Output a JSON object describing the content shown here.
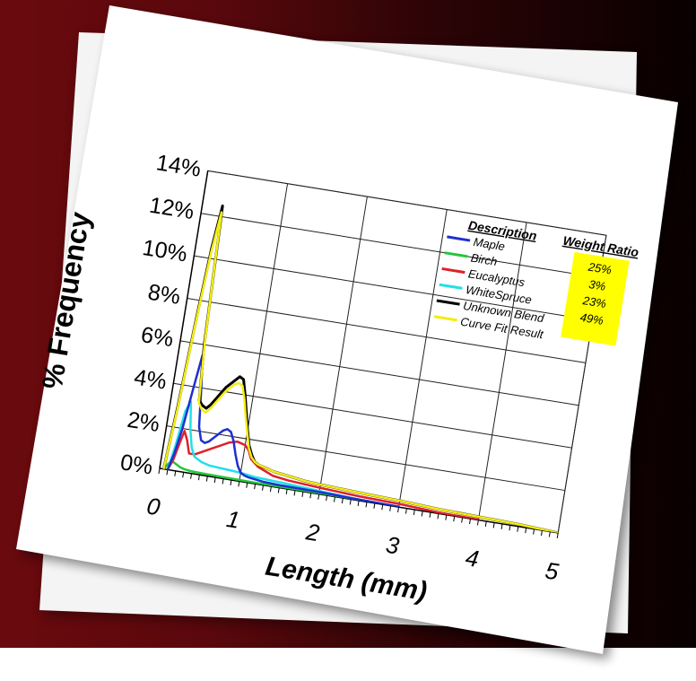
{
  "colors": {
    "maple": "#1f2fd0",
    "birch": "#22c83a",
    "eucalyptus": "#e0202a",
    "white_spruce": "#22e0e8",
    "unknown_blend": "#000000",
    "curve_fit": "#f4ee10",
    "weight_ratio_fill": "#ffff00",
    "background_left": "#6a0a0e",
    "background_right": "#080000"
  },
  "chart_data": {
    "type": "line",
    "title": "",
    "xlabel": "Length (mm)",
    "ylabel": "% Frequency",
    "xlim": [
      0,
      5
    ],
    "ylim": [
      0,
      14
    ],
    "x_ticks": [
      "0",
      "1",
      "2",
      "3",
      "4",
      "5"
    ],
    "y_ticks": [
      "0%",
      "2%",
      "4%",
      "6%",
      "8%",
      "10%",
      "12%",
      "14%"
    ],
    "grid": true,
    "legend": {
      "title": "Description",
      "placement": "top-right",
      "entries": [
        "Maple",
        "Birch",
        "Eucalyptus",
        "WhiteSpruce",
        "Unknown Blend",
        "Curve Fit Result"
      ]
    },
    "weight_ratio": {
      "title": "Weight Ratio",
      "values": [
        "25%",
        "3%",
        "23%",
        "49%"
      ]
    },
    "series": [
      {
        "name": "Maple",
        "color": "#1f2fd0",
        "x": [
          0.1,
          0.15,
          0.2,
          0.25,
          0.3,
          0.35,
          0.4,
          0.45,
          0.5,
          0.55,
          0.6,
          0.65,
          0.7,
          0.75,
          0.8,
          0.85,
          0.9,
          0.95,
          1.0,
          1.05,
          1.1,
          1.2,
          1.3,
          1.5,
          2.0,
          2.5,
          3.0
        ],
        "y": [
          0.0,
          0.8,
          2.0,
          3.8,
          5.5,
          4.0,
          2.2,
          1.6,
          1.5,
          1.6,
          1.8,
          2.0,
          2.2,
          2.3,
          2.2,
          1.8,
          1.2,
          0.7,
          0.4,
          0.3,
          0.25,
          0.2,
          0.15,
          0.12,
          0.1,
          0.05,
          0.02
        ]
      },
      {
        "name": "Birch",
        "color": "#22c83a",
        "x": [
          0.05,
          0.1,
          0.15,
          0.2,
          0.25,
          0.3,
          0.4,
          0.6,
          0.8,
          1.0,
          1.2,
          1.5,
          2.0,
          2.5
        ],
        "y": [
          0.0,
          0.3,
          0.4,
          0.3,
          0.2,
          0.15,
          0.1,
          0.08,
          0.07,
          0.06,
          0.05,
          0.04,
          0.02,
          0.01
        ]
      },
      {
        "name": "Eucalyptus",
        "color": "#e0202a",
        "x": [
          0.1,
          0.15,
          0.2,
          0.23,
          0.28,
          0.33,
          0.4,
          0.5,
          0.6,
          0.7,
          0.8,
          0.9,
          1.0,
          1.05,
          1.1,
          1.2,
          1.4,
          1.6,
          2.0,
          2.5,
          3.0,
          3.5,
          4.0
        ],
        "y": [
          0.0,
          0.5,
          1.4,
          1.9,
          1.5,
          0.9,
          0.9,
          1.1,
          1.3,
          1.5,
          1.7,
          1.8,
          1.7,
          1.5,
          1.1,
          0.8,
          0.5,
          0.4,
          0.3,
          0.2,
          0.15,
          0.05,
          0.02
        ]
      },
      {
        "name": "WhiteSpruce",
        "color": "#22e0e8",
        "x": [
          0.1,
          0.15,
          0.2,
          0.25,
          0.3,
          0.35,
          0.4,
          0.5,
          0.6,
          0.8,
          1.0,
          1.2,
          1.5,
          2.0,
          2.5
        ],
        "y": [
          0.0,
          1.2,
          2.8,
          3.3,
          2.0,
          1.2,
          0.8,
          0.6,
          0.5,
          0.45,
          0.4,
          0.3,
          0.25,
          0.15,
          0.05
        ]
      },
      {
        "name": "Unknown Blend",
        "color": "#000000",
        "x": [
          0.05,
          0.1,
          0.15,
          0.2,
          0.25,
          0.3,
          0.35,
          0.4,
          0.45,
          0.5,
          0.55,
          0.6,
          0.65,
          0.7,
          0.75,
          0.8,
          0.85,
          0.9,
          0.95,
          1.0,
          1.05,
          1.1,
          1.15,
          1.2,
          1.3,
          1.4,
          1.6,
          1.8,
          2.0,
          2.3,
          2.6,
          3.0,
          3.5,
          4.0,
          4.5,
          5.0
        ],
        "y": [
          0.0,
          3.0,
          7.0,
          10.5,
          12.5,
          6.0,
          3.4,
          3.2,
          3.1,
          3.3,
          3.6,
          3.9,
          4.2,
          4.4,
          4.6,
          4.8,
          4.7,
          4.0,
          3.2,
          2.4,
          1.7,
          1.3,
          1.0,
          0.9,
          0.8,
          0.7,
          0.6,
          0.5,
          0.45,
          0.4,
          0.35,
          0.3,
          0.2,
          0.15,
          0.1,
          0.0
        ]
      },
      {
        "name": "Curve Fit Result",
        "color": "#f4ee10",
        "x": [
          0.05,
          0.1,
          0.15,
          0.2,
          0.25,
          0.3,
          0.35,
          0.4,
          0.45,
          0.5,
          0.55,
          0.6,
          0.65,
          0.7,
          0.75,
          0.8,
          0.85,
          0.9,
          0.95,
          1.0,
          1.05,
          1.1,
          1.15,
          1.2,
          1.3,
          1.4,
          1.6,
          1.8,
          2.0,
          2.3,
          2.6,
          3.0,
          3.5,
          4.0,
          4.5,
          5.0
        ],
        "y": [
          0.0,
          2.8,
          6.8,
          10.2,
          12.2,
          6.3,
          3.3,
          3.0,
          2.9,
          3.1,
          3.4,
          3.7,
          4.0,
          4.2,
          4.4,
          4.5,
          4.4,
          3.8,
          3.0,
          2.3,
          1.6,
          1.2,
          1.0,
          0.9,
          0.8,
          0.7,
          0.6,
          0.5,
          0.45,
          0.4,
          0.35,
          0.3,
          0.2,
          0.15,
          0.1,
          0.0
        ]
      }
    ]
  }
}
